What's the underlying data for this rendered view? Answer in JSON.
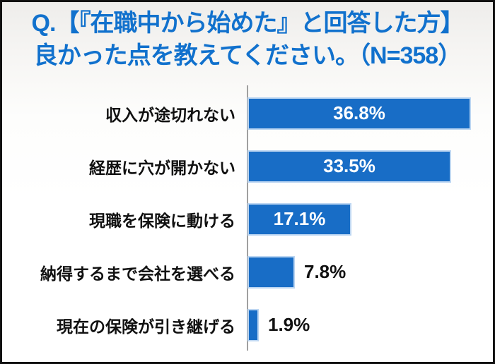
{
  "page": {
    "border_color": "#111111",
    "background_top": "#eeedeb",
    "background_bottom": "#ffffff"
  },
  "header": {
    "line1": "Q.【『在職中から始めた』と回答した方】",
    "line2": "良かった点を教えてください。（N=358）",
    "text_color": "#1171cd"
  },
  "chart_data": {
    "type": "bar",
    "orientation": "horizontal",
    "title": "Q.【『在職中から始めた』と回答した方】良かった点を教えてください。",
    "n_label": "N=358",
    "categories": [
      "収入が途切れない",
      "経歴に穴が開かない",
      "現職を保険に動ける",
      "納得するまで会社を選べる",
      "現在の保険が引き継げる"
    ],
    "values": [
      36.8,
      33.5,
      17.1,
      7.8,
      1.9
    ],
    "value_labels": [
      "36.8%",
      "33.5%",
      "17.1%",
      "7.8%",
      "1.9%"
    ],
    "xlim": [
      0,
      40
    ],
    "grid": false,
    "legend": "none",
    "bar_color": "#186dc6",
    "bar_border_color": "#bcd6f2",
    "axis_color": "#a0a0a0",
    "category_label_color": "#111111",
    "value_label_inside_color": "#ffffff",
    "value_label_outside_color": "#111111",
    "inside_label_threshold": 15
  }
}
